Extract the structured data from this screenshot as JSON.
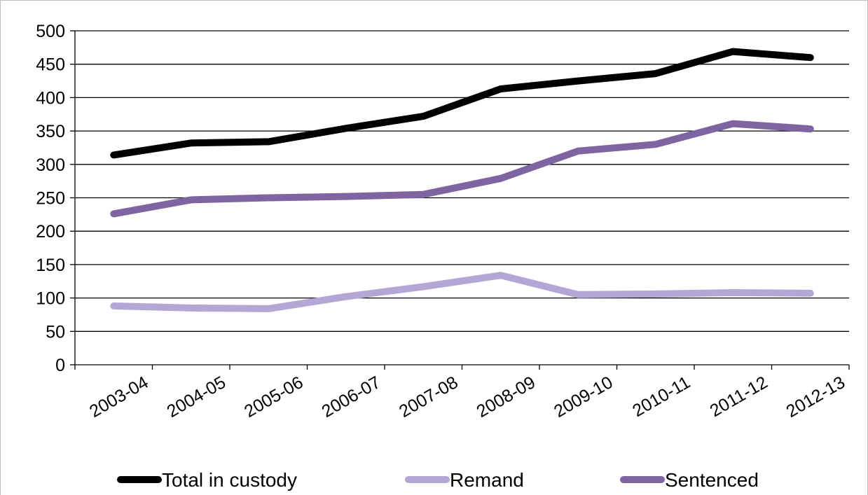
{
  "chart_data": {
    "type": "line",
    "categories": [
      "2003-04",
      "2004-05",
      "2005-06",
      "2006-07",
      "2007-08",
      "2008-09",
      "2009-10",
      "2010-11",
      "2011-12",
      "2012-13"
    ],
    "series": [
      {
        "name": "Total in custody",
        "values": [
          314,
          332,
          334,
          354,
          372,
          413,
          425,
          436,
          469,
          460
        ],
        "color": "#000000"
      },
      {
        "name": "Remand",
        "values": [
          88,
          85,
          84,
          102,
          117,
          134,
          105,
          106,
          108,
          107
        ],
        "color": "#b4a7d6"
      },
      {
        "name": "Sentenced",
        "values": [
          226,
          247,
          250,
          252,
          255,
          279,
          320,
          330,
          361,
          353
        ],
        "color": "#8064a2"
      }
    ],
    "ylim": [
      0,
      500
    ],
    "yticks": [
      0,
      50,
      100,
      150,
      200,
      250,
      300,
      350,
      400,
      450,
      500
    ],
    "grid": true,
    "legend_position": "bottom",
    "title": "",
    "xlabel": "",
    "ylabel": ""
  }
}
